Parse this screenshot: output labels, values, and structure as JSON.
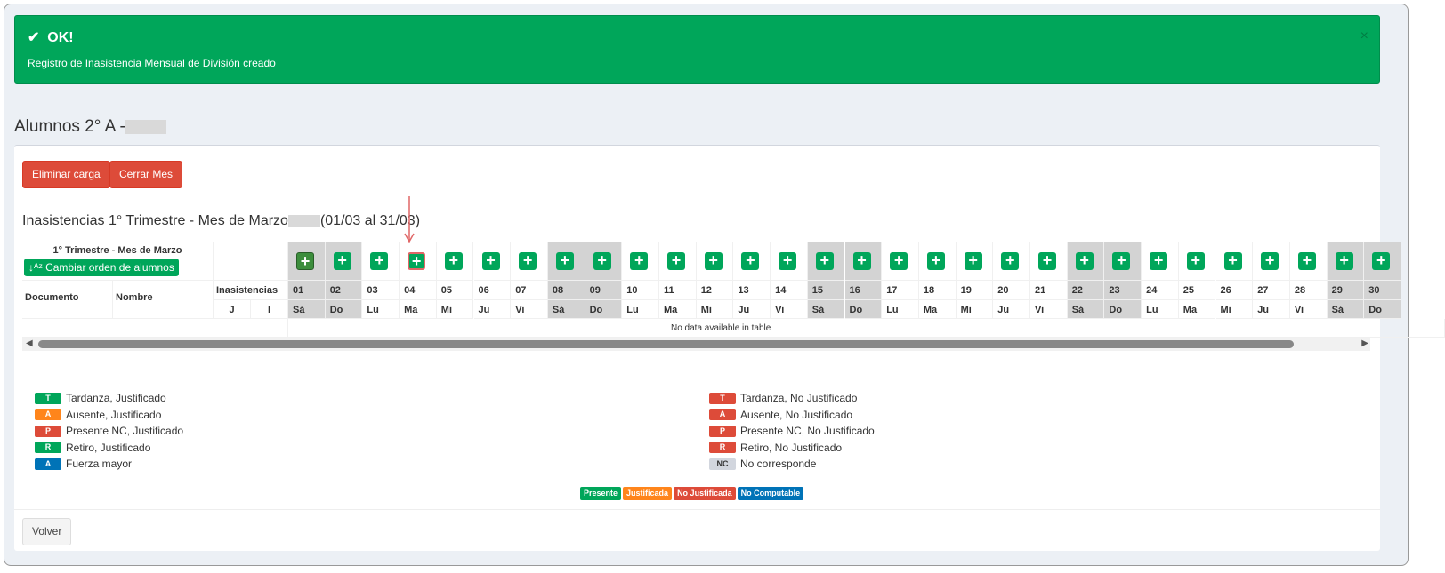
{
  "alert": {
    "title": "OK!",
    "message": "Registro de Inasistencia Mensual de División creado",
    "close": "×"
  },
  "page_title": "Alumnos 2° A -",
  "buttons": {
    "delete": "Eliminar carga",
    "close_month": "Cerrar Mes",
    "back": "Volver"
  },
  "subtitle_a": "Inasistencias 1° Trimestre - Mes de Marzo",
  "subtitle_b": "(01/03 al 31/03)",
  "table": {
    "period": "1° Trimestre - Mes de Marzo",
    "sort_button": "Cambiar orden de alumnos",
    "col_doc": "Documento",
    "col_name": "Nombre",
    "col_inas": "Inasistencias",
    "col_j": "J",
    "col_i": "I",
    "empty": "No data available in table",
    "days": [
      [
        "01",
        "Sá"
      ],
      [
        "02",
        "Do"
      ],
      [
        "03",
        "Lu"
      ],
      [
        "04",
        "Ma"
      ],
      [
        "05",
        "Mi"
      ],
      [
        "06",
        "Ju"
      ],
      [
        "07",
        "Vi"
      ],
      [
        "08",
        "Sá"
      ],
      [
        "09",
        "Do"
      ],
      [
        "10",
        "Lu"
      ],
      [
        "11",
        "Ma"
      ],
      [
        "12",
        "Mi"
      ],
      [
        "13",
        "Ju"
      ],
      [
        "14",
        "Vi"
      ],
      [
        "15",
        "Sá"
      ],
      [
        "16",
        "Do"
      ],
      [
        "17",
        "Lu"
      ],
      [
        "18",
        "Ma"
      ],
      [
        "19",
        "Mi"
      ],
      [
        "20",
        "Ju"
      ],
      [
        "21",
        "Vi"
      ],
      [
        "22",
        "Sá"
      ],
      [
        "23",
        "Do"
      ],
      [
        "24",
        "Lu"
      ],
      [
        "25",
        "Ma"
      ],
      [
        "26",
        "Mi"
      ],
      [
        "27",
        "Ju"
      ],
      [
        "28",
        "Vi"
      ],
      [
        "29",
        "Sá"
      ],
      [
        "30",
        "Do"
      ]
    ]
  },
  "legend_left": [
    {
      "b": "T",
      "t": "Tardanza, Justificado",
      "c": "#00a65a"
    },
    {
      "b": "A",
      "t": "Ausente, Justificado",
      "c": "#ff851b"
    },
    {
      "b": "P",
      "t": "Presente NC, Justificado",
      "c": "#dd4b39"
    },
    {
      "b": "R",
      "t": "Retiro, Justificado",
      "c": "#00a65a"
    },
    {
      "b": "A",
      "t": "Fuerza mayor",
      "c": "#0073b7"
    }
  ],
  "legend_right": [
    {
      "b": "T",
      "t": "Tardanza, No Justificado",
      "c": "#dd4b39"
    },
    {
      "b": "A",
      "t": "Ausente, No Justificado",
      "c": "#dd4b39"
    },
    {
      "b": "P",
      "t": "Presente NC, No Justificado",
      "c": "#dd4b39"
    },
    {
      "b": "R",
      "t": "Retiro, No Justificado",
      "c": "#dd4b39"
    },
    {
      "b": "NC",
      "t": "No corresponde",
      "c": "#d2d6de"
    }
  ],
  "status": [
    {
      "t": "Presente",
      "c": "#00a65a"
    },
    {
      "t": "Justificada",
      "c": "#ff851b"
    },
    {
      "t": "No Justificada",
      "c": "#dd4b39"
    },
    {
      "t": "No Computable",
      "c": "#0073b7"
    }
  ]
}
